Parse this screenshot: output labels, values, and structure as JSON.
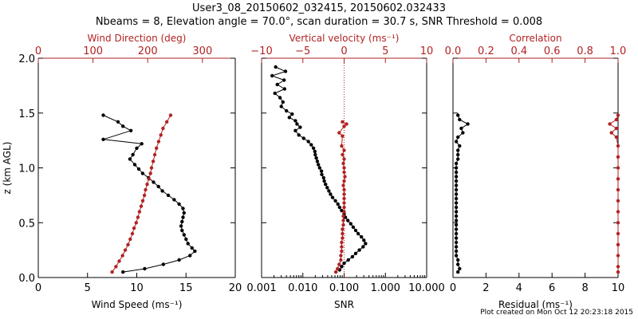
{
  "title": {
    "line1": "User3_08_20150602_032415, 20150602.032433",
    "line2": "Nbeams = 8, Elevation angle = 70.0°, scan duration = 30.7 s, SNR Threshold = 0.008"
  },
  "credit": "Plot created on Mon Oct 12 20:23:18 2015",
  "colors": {
    "primary": "#000000",
    "secondary": "#b22222"
  },
  "chart_data": [
    {
      "type": "scatter",
      "xlabel": "Wind Speed (ms⁻¹)",
      "ylabel": "z (km AGL)",
      "xlim": [
        0,
        20
      ],
      "xticks": [
        "0",
        "5",
        "10",
        "15",
        "20"
      ],
      "ylim": [
        0,
        2
      ],
      "yticks": [
        "0.0",
        "0.5",
        "1.0",
        "1.5",
        "2.0"
      ],
      "top_axis": {
        "label": "Wind Direction (deg)",
        "lim": [
          0,
          360
        ],
        "ticks": [
          "0",
          "100",
          "200",
          "300"
        ]
      },
      "series": [
        {
          "values": [
            [
              6.6,
              1.48
            ],
            [
              8.1,
              1.42
            ],
            [
              8.6,
              1.38
            ],
            [
              9.4,
              1.34
            ],
            [
              6.6,
              1.26
            ],
            [
              10.5,
              1.22
            ],
            [
              10.0,
              1.18
            ],
            [
              9.6,
              1.12
            ],
            [
              9.3,
              1.08
            ],
            [
              9.8,
              1.03
            ],
            [
              10.2,
              0.99
            ],
            [
              10.6,
              0.95
            ],
            [
              11.2,
              0.91
            ],
            [
              11.7,
              0.87
            ],
            [
              12.2,
              0.83
            ],
            [
              12.6,
              0.79
            ],
            [
              13.2,
              0.75
            ],
            [
              13.8,
              0.71
            ],
            [
              14.3,
              0.67
            ],
            [
              14.7,
              0.63
            ],
            [
              14.8,
              0.59
            ],
            [
              14.7,
              0.55
            ],
            [
              14.6,
              0.51
            ],
            [
              14.5,
              0.47
            ],
            [
              14.6,
              0.43
            ],
            [
              14.8,
              0.39
            ],
            [
              15.0,
              0.35
            ],
            [
              15.2,
              0.31
            ],
            [
              15.6,
              0.27
            ],
            [
              15.9,
              0.24
            ],
            [
              15.4,
              0.2
            ],
            [
              14.3,
              0.16
            ],
            [
              12.7,
              0.12
            ],
            [
              10.8,
              0.08
            ],
            [
              8.6,
              0.05
            ]
          ]
        },
        {
          "values": [
            [
              242,
              1.48
            ],
            [
              235,
              1.42
            ],
            [
              228,
              1.36
            ],
            [
              224,
              1.3
            ],
            [
              220,
              1.24
            ],
            [
              216,
              1.18
            ],
            [
              213,
              1.12
            ],
            [
              210,
              1.06
            ],
            [
              207,
              1.0
            ],
            [
              205,
              0.95
            ],
            [
              202,
              0.9
            ],
            [
              199,
              0.85
            ],
            [
              196,
              0.8
            ],
            [
              194,
              0.75
            ],
            [
              191,
              0.7
            ],
            [
              188,
              0.65
            ],
            [
              185,
              0.6
            ],
            [
              182,
              0.55
            ],
            [
              179,
              0.5
            ],
            [
              175,
              0.45
            ],
            [
              172,
              0.4
            ],
            [
              168,
              0.35
            ],
            [
              164,
              0.3
            ],
            [
              159,
              0.25
            ],
            [
              154,
              0.2
            ],
            [
              148,
              0.15
            ],
            [
              142,
              0.1
            ],
            [
              135,
              0.05
            ]
          ]
        }
      ]
    },
    {
      "type": "scatter",
      "xlabel": "SNR",
      "xscale": "log",
      "xlim": [
        0.001,
        10
      ],
      "xticks": [
        "0.001",
        "0.010",
        "0.100",
        "1.000",
        "10.000"
      ],
      "ylim": [
        0,
        2
      ],
      "top_axis": {
        "label": "Vertical velocity (ms⁻¹)",
        "lim": [
          -10,
          10
        ],
        "ticks": [
          "−10",
          "−5",
          "0",
          "5",
          "10"
        ]
      },
      "series": [
        {
          "values": [
            [
              0.0022,
              1.92
            ],
            [
              0.0038,
              1.88
            ],
            [
              0.0018,
              1.84
            ],
            [
              0.0035,
              1.8
            ],
            [
              0.0024,
              1.76
            ],
            [
              0.0036,
              1.72
            ],
            [
              0.0021,
              1.68
            ],
            [
              0.0028,
              1.64
            ],
            [
              0.0033,
              1.6
            ],
            [
              0.003,
              1.56
            ],
            [
              0.004,
              1.52
            ],
            [
              0.0055,
              1.49
            ],
            [
              0.0047,
              1.46
            ],
            [
              0.0066,
              1.43
            ],
            [
              0.0072,
              1.4
            ],
            [
              0.0086,
              1.37
            ],
            [
              0.0066,
              1.34
            ],
            [
              0.008,
              1.3
            ],
            [
              0.0105,
              1.27
            ],
            [
              0.0136,
              1.24
            ],
            [
              0.016,
              1.21
            ],
            [
              0.0181,
              1.18
            ],
            [
              0.0195,
              1.15
            ],
            [
              0.02,
              1.12
            ],
            [
              0.0212,
              1.09
            ],
            [
              0.0224,
              1.06
            ],
            [
              0.0238,
              1.03
            ],
            [
              0.0255,
              1.0
            ],
            [
              0.0282,
              0.97
            ],
            [
              0.0288,
              0.94
            ],
            [
              0.0318,
              0.91
            ],
            [
              0.033,
              0.88
            ],
            [
              0.0355,
              0.85
            ],
            [
              0.0389,
              0.82
            ],
            [
              0.0427,
              0.79
            ],
            [
              0.0468,
              0.76
            ],
            [
              0.0525,
              0.73
            ],
            [
              0.0617,
              0.7
            ],
            [
              0.0708,
              0.67
            ],
            [
              0.0776,
              0.64
            ],
            [
              0.0871,
              0.61
            ],
            [
              0.1,
              0.58
            ],
            [
              0.1072,
              0.55
            ],
            [
              0.123,
              0.52
            ],
            [
              0.1445,
              0.49
            ],
            [
              0.166,
              0.46
            ],
            [
              0.1905,
              0.43
            ],
            [
              0.2188,
              0.4
            ],
            [
              0.263,
              0.37
            ],
            [
              0.302,
              0.34
            ],
            [
              0.3311,
              0.31
            ],
            [
              0.2884,
              0.28
            ],
            [
              0.2344,
              0.25
            ],
            [
              0.1905,
              0.22
            ],
            [
              0.1585,
              0.19
            ],
            [
              0.1259,
              0.16
            ],
            [
              0.1,
              0.13
            ],
            [
              0.0871,
              0.1
            ],
            [
              0.0776,
              0.07
            ]
          ]
        },
        {
          "values": [
            [
              -0.2,
              1.42
            ],
            [
              0.3,
              1.4
            ],
            [
              0.0,
              1.38
            ],
            [
              -0.6,
              1.32
            ],
            [
              -0.2,
              1.29
            ],
            [
              -0.3,
              1.2
            ],
            [
              0.0,
              1.16
            ],
            [
              -0.2,
              1.12
            ],
            [
              0.0,
              1.08
            ],
            [
              -0.1,
              1.04
            ],
            [
              0.0,
              1.0
            ],
            [
              0.0,
              0.96
            ],
            [
              0.1,
              0.92
            ],
            [
              0.0,
              0.88
            ],
            [
              -0.1,
              0.84
            ],
            [
              0.0,
              0.8
            ],
            [
              0.0,
              0.76
            ],
            [
              0.0,
              0.72
            ],
            [
              0.0,
              0.68
            ],
            [
              0.0,
              0.64
            ],
            [
              0.0,
              0.6
            ],
            [
              -0.1,
              0.56
            ],
            [
              -0.1,
              0.52
            ],
            [
              -0.1,
              0.48
            ],
            [
              -0.2,
              0.44
            ],
            [
              -0.2,
              0.4
            ],
            [
              -0.2,
              0.36
            ],
            [
              -0.3,
              0.32
            ],
            [
              -0.3,
              0.28
            ],
            [
              -0.3,
              0.24
            ],
            [
              -0.4,
              0.2
            ],
            [
              -0.4,
              0.16
            ],
            [
              -0.6,
              0.12
            ],
            [
              -0.8,
              0.08
            ],
            [
              -1.0,
              0.05
            ]
          ]
        }
      ]
    },
    {
      "type": "scatter",
      "xlabel": "Residual (ms⁻¹)",
      "xlim": [
        0,
        10
      ],
      "xticks": [
        "0",
        "2",
        "4",
        "6",
        "8",
        "10"
      ],
      "ylim": [
        0,
        2
      ],
      "top_axis": {
        "label": "Correlation",
        "lim": [
          0,
          1
        ],
        "ticks": [
          "0.0",
          "0.2",
          "0.4",
          "0.6",
          "0.8",
          "1.0"
        ]
      },
      "series": [
        {
          "values": [
            [
              0.3,
              1.48
            ],
            [
              0.4,
              1.44
            ],
            [
              0.9,
              1.4
            ],
            [
              0.5,
              1.36
            ],
            [
              0.6,
              1.32
            ],
            [
              0.3,
              1.28
            ],
            [
              0.2,
              1.24
            ],
            [
              0.4,
              1.2
            ],
            [
              0.3,
              1.16
            ],
            [
              0.3,
              1.12
            ],
            [
              0.3,
              1.08
            ],
            [
              0.2,
              1.04
            ],
            [
              0.2,
              1.0
            ],
            [
              0.2,
              0.96
            ],
            [
              0.2,
              0.92
            ],
            [
              0.2,
              0.88
            ],
            [
              0.2,
              0.84
            ],
            [
              0.2,
              0.8
            ],
            [
              0.2,
              0.76
            ],
            [
              0.2,
              0.72
            ],
            [
              0.2,
              0.68
            ],
            [
              0.2,
              0.64
            ],
            [
              0.2,
              0.6
            ],
            [
              0.2,
              0.56
            ],
            [
              0.2,
              0.52
            ],
            [
              0.2,
              0.48
            ],
            [
              0.2,
              0.44
            ],
            [
              0.2,
              0.4
            ],
            [
              0.2,
              0.36
            ],
            [
              0.2,
              0.32
            ],
            [
              0.2,
              0.28
            ],
            [
              0.2,
              0.24
            ],
            [
              0.2,
              0.2
            ],
            [
              0.3,
              0.16
            ],
            [
              0.3,
              0.12
            ],
            [
              0.4,
              0.08
            ],
            [
              0.3,
              0.05
            ]
          ]
        },
        {
          "values": [
            [
              1.0,
              1.48
            ],
            [
              0.99,
              1.44
            ],
            [
              0.95,
              1.4
            ],
            [
              0.99,
              1.36
            ],
            [
              0.96,
              1.32
            ],
            [
              0.99,
              1.28
            ],
            [
              1.0,
              1.2
            ],
            [
              1.0,
              1.1
            ],
            [
              1.0,
              1.0
            ],
            [
              1.0,
              0.9
            ],
            [
              1.0,
              0.8
            ],
            [
              1.0,
              0.7
            ],
            [
              1.0,
              0.6
            ],
            [
              1.0,
              0.5
            ],
            [
              1.0,
              0.4
            ],
            [
              1.0,
              0.3
            ],
            [
              1.0,
              0.2
            ],
            [
              1.0,
              0.1
            ],
            [
              1.0,
              0.05
            ]
          ]
        }
      ]
    }
  ]
}
